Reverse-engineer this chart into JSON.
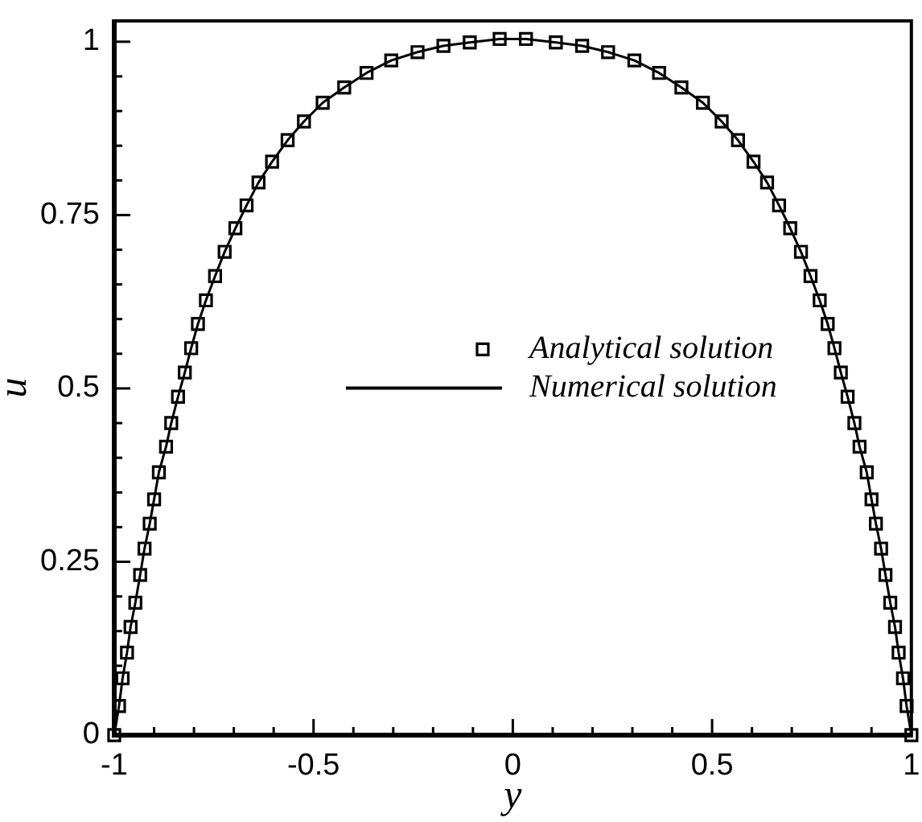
{
  "chart_data": {
    "type": "line",
    "xlabel": "y",
    "ylabel": "u",
    "legend": "center",
    "xlim": [
      -1,
      1
    ],
    "xticks": [
      -1,
      {
        "value": -0.9,
        "label": null
      },
      {
        "value": -0.8,
        "label": null
      },
      {
        "value": -0.7,
        "label": null
      },
      {
        "value": -0.6,
        "label": null
      },
      -0.5,
      {
        "value": -0.4,
        "label": null
      },
      {
        "value": -0.3,
        "label": null
      },
      {
        "value": -0.2,
        "label": null
      },
      {
        "value": -0.1,
        "label": null
      },
      0,
      {
        "value": 0.1,
        "label": null
      },
      {
        "value": 0.2,
        "label": null
      },
      {
        "value": 0.3,
        "label": null
      },
      {
        "value": 0.4,
        "label": null
      },
      0.5,
      {
        "value": 0.6,
        "label": null
      },
      {
        "value": 0.7,
        "label": null
      },
      {
        "value": 0.8,
        "label": null
      },
      {
        "value": 0.9,
        "label": null
      },
      1
    ],
    "ylim": [
      0,
      1.03
    ],
    "yticks": [
      0,
      {
        "value": 0.05,
        "label": null
      },
      {
        "value": 0.1,
        "label": null
      },
      {
        "value": 0.15,
        "label": null
      },
      {
        "value": 0.2,
        "label": null
      },
      0.25,
      {
        "value": 0.3,
        "label": null
      },
      {
        "value": 0.35,
        "label": null
      },
      {
        "value": 0.4,
        "label": null
      },
      {
        "value": 0.45,
        "label": null
      },
      0.5,
      {
        "value": 0.55,
        "label": null
      },
      {
        "value": 0.6,
        "label": null
      },
      {
        "value": 0.65,
        "label": null
      },
      {
        "value": 0.7,
        "label": null
      },
      0.75,
      {
        "value": 0.8,
        "label": null
      },
      {
        "value": 0.85,
        "label": null
      },
      {
        "value": 0.9,
        "label": null
      },
      {
        "value": 0.95,
        "label": null
      },
      1
    ],
    "series": [
      {
        "name": "Analytical solution",
        "type": "scatter",
        "marker": "square",
        "color": "#000000",
        "x": [
          -1,
          -0.988,
          -0.979,
          -0.968,
          -0.959,
          -0.947,
          -0.935,
          -0.924,
          -0.911,
          -0.9,
          -0.888,
          -0.87,
          -0.857,
          -0.84,
          -0.823,
          -0.807,
          -0.79,
          -0.77,
          -0.747,
          -0.723,
          -0.696,
          -0.668,
          -0.638,
          -0.604,
          -0.565,
          -0.524,
          -0.477,
          -0.423,
          -0.367,
          -0.305,
          -0.239,
          -0.174,
          -0.108,
          -0.033,
          0.033,
          0.108,
          0.174,
          0.239,
          0.305,
          0.367,
          0.423,
          0.477,
          0.524,
          0.565,
          0.604,
          0.638,
          0.668,
          0.696,
          0.723,
          0.747,
          0.77,
          0.79,
          0.807,
          0.823,
          0.84,
          0.857,
          0.87,
          0.888,
          0.9,
          0.911,
          0.924,
          0.935,
          0.947,
          0.959,
          0.968,
          0.979,
          0.988,
          1
        ],
        "values": [
          0,
          0.042,
          0.082,
          0.119,
          0.156,
          0.191,
          0.231,
          0.269,
          0.305,
          0.34,
          0.379,
          0.416,
          0.45,
          0.488,
          0.523,
          0.558,
          0.593,
          0.627,
          0.662,
          0.697,
          0.731,
          0.764,
          0.797,
          0.827,
          0.858,
          0.885,
          0.912,
          0.934,
          0.955,
          0.973,
          0.985,
          0.994,
          0.999,
          1.004,
          1.004,
          0.999,
          0.994,
          0.985,
          0.973,
          0.955,
          0.934,
          0.912,
          0.885,
          0.858,
          0.827,
          0.797,
          0.764,
          0.731,
          0.697,
          0.662,
          0.627,
          0.593,
          0.558,
          0.523,
          0.488,
          0.45,
          0.416,
          0.379,
          0.34,
          0.305,
          0.269,
          0.231,
          0.191,
          0.156,
          0.119,
          0.082,
          0.042,
          0
        ]
      },
      {
        "name": "Numerical solution",
        "type": "line",
        "color": "#000000",
        "x": [
          -1,
          -0.988,
          -0.979,
          -0.968,
          -0.959,
          -0.947,
          -0.935,
          -0.924,
          -0.911,
          -0.9,
          -0.888,
          -0.87,
          -0.857,
          -0.84,
          -0.823,
          -0.807,
          -0.79,
          -0.77,
          -0.747,
          -0.723,
          -0.696,
          -0.668,
          -0.638,
          -0.604,
          -0.565,
          -0.524,
          -0.477,
          -0.423,
          -0.367,
          -0.305,
          -0.239,
          -0.174,
          -0.108,
          -0.033,
          0.033,
          0.108,
          0.174,
          0.239,
          0.305,
          0.367,
          0.423,
          0.477,
          0.524,
          0.565,
          0.604,
          0.638,
          0.668,
          0.696,
          0.723,
          0.747,
          0.77,
          0.79,
          0.807,
          0.823,
          0.84,
          0.857,
          0.87,
          0.888,
          0.9,
          0.911,
          0.924,
          0.935,
          0.947,
          0.959,
          0.968,
          0.979,
          0.988,
          1
        ],
        "values": [
          0,
          0.042,
          0.082,
          0.119,
          0.156,
          0.191,
          0.231,
          0.269,
          0.305,
          0.34,
          0.379,
          0.416,
          0.45,
          0.488,
          0.523,
          0.558,
          0.593,
          0.627,
          0.662,
          0.697,
          0.731,
          0.764,
          0.797,
          0.827,
          0.858,
          0.885,
          0.912,
          0.934,
          0.955,
          0.973,
          0.985,
          0.994,
          0.999,
          1.004,
          1.004,
          0.999,
          0.994,
          0.985,
          0.973,
          0.955,
          0.934,
          0.912,
          0.885,
          0.858,
          0.827,
          0.797,
          0.764,
          0.731,
          0.697,
          0.662,
          0.627,
          0.593,
          0.558,
          0.523,
          0.488,
          0.45,
          0.416,
          0.379,
          0.34,
          0.305,
          0.269,
          0.231,
          0.191,
          0.156,
          0.119,
          0.082,
          0.042,
          0
        ]
      }
    ]
  }
}
